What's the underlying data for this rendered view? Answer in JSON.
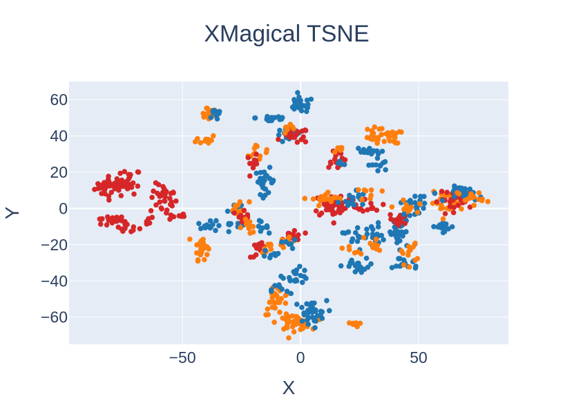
{
  "chart_data": {
    "type": "scatter",
    "title": "XMagical TSNE",
    "xlabel": "X",
    "ylabel": "Y",
    "xlim": [
      -98,
      88
    ],
    "ylim": [
      -75,
      70
    ],
    "x_ticks": [
      -50,
      0,
      50
    ],
    "y_ticks": [
      60,
      40,
      20,
      0,
      -20,
      -40,
      -60
    ],
    "x_tick_labels": [
      "−50",
      "0",
      "50"
    ],
    "y_tick_labels": [
      "60",
      "40",
      "20",
      "0",
      "−20",
      "−40",
      "−60"
    ],
    "grid": true,
    "legend": "none",
    "colors": {
      "plot_background": "#e5ecf6",
      "grid": "#ffffff",
      "text": "#2a3f5f",
      "blue": "#1f77b4",
      "orange": "#ff7f0e",
      "red": "#d62728"
    },
    "clusters": [
      {
        "color": "red",
        "center": [
          -80,
          12
        ],
        "spread": [
          5,
          4
        ],
        "count": 35
      },
      {
        "color": "red",
        "center": [
          -72,
          15
        ],
        "spread": [
          3,
          5
        ],
        "count": 20
      },
      {
        "color": "red",
        "center": [
          -82,
          -7
        ],
        "spread": [
          4,
          2
        ],
        "count": 15
      },
      {
        "color": "red",
        "center": [
          -74,
          -10
        ],
        "spread": [
          4,
          3
        ],
        "count": 15
      },
      {
        "color": "red",
        "center": [
          -58,
          5
        ],
        "spread": [
          4,
          6
        ],
        "count": 30
      },
      {
        "color": "red",
        "center": [
          -52,
          -4
        ],
        "spread": [
          3,
          2
        ],
        "count": 10
      },
      {
        "color": "red",
        "center": [
          -66,
          -7
        ],
        "spread": [
          3,
          2
        ],
        "count": 6
      },
      {
        "color": "orange",
        "center": [
          -39,
          53
        ],
        "spread": [
          3,
          3
        ],
        "count": 18
      },
      {
        "color": "blue",
        "center": [
          -35,
          52
        ],
        "spread": [
          3,
          3
        ],
        "count": 10
      },
      {
        "color": "orange",
        "center": [
          -40,
          38
        ],
        "spread": [
          3,
          2
        ],
        "count": 10
      },
      {
        "color": "orange",
        "center": [
          -42,
          -21
        ],
        "spread": [
          2,
          5
        ],
        "count": 25
      },
      {
        "color": "blue",
        "center": [
          -38,
          -10
        ],
        "spread": [
          4,
          2
        ],
        "count": 15
      },
      {
        "color": "blue",
        "center": [
          -28,
          0
        ],
        "spread": [
          2,
          3
        ],
        "count": 12
      },
      {
        "color": "blue",
        "center": [
          -30,
          -9
        ],
        "spread": [
          3,
          1
        ],
        "count": 8
      },
      {
        "color": "orange",
        "center": [
          -26,
          0
        ],
        "spread": [
          3,
          3
        ],
        "count": 10
      },
      {
        "color": "red",
        "center": [
          -24,
          -3
        ],
        "spread": [
          2,
          3
        ],
        "count": 10
      },
      {
        "color": "orange",
        "center": [
          -18,
          30
        ],
        "spread": [
          3,
          4
        ],
        "count": 12
      },
      {
        "color": "red",
        "center": [
          -20,
          25
        ],
        "spread": [
          2,
          3
        ],
        "count": 10
      },
      {
        "color": "blue",
        "center": [
          -15,
          15
        ],
        "spread": [
          3,
          5
        ],
        "count": 25
      },
      {
        "color": "orange",
        "center": [
          -22,
          -10
        ],
        "spread": [
          3,
          3
        ],
        "count": 12
      },
      {
        "color": "blue",
        "center": [
          -18,
          -10
        ],
        "spread": [
          3,
          2
        ],
        "count": 8
      },
      {
        "color": "red",
        "center": [
          -17,
          -23
        ],
        "spread": [
          3,
          3
        ],
        "count": 15
      },
      {
        "color": "orange",
        "center": [
          -14,
          -22
        ],
        "spread": [
          2,
          3
        ],
        "count": 8
      },
      {
        "color": "blue",
        "center": [
          -12,
          -25
        ],
        "spread": [
          3,
          3
        ],
        "count": 8
      },
      {
        "color": "blue",
        "center": [
          -12,
          50
        ],
        "spread": [
          5,
          2
        ],
        "count": 15
      },
      {
        "color": "blue",
        "center": [
          0,
          57
        ],
        "spread": [
          4,
          3
        ],
        "count": 30
      },
      {
        "color": "blue",
        "center": [
          -5,
          40
        ],
        "spread": [
          4,
          3
        ],
        "count": 20
      },
      {
        "color": "red",
        "center": [
          -2,
          40
        ],
        "spread": [
          4,
          3
        ],
        "count": 20
      },
      {
        "color": "orange",
        "center": [
          -5,
          43
        ],
        "spread": [
          3,
          2
        ],
        "count": 8
      },
      {
        "color": "red",
        "center": [
          -3,
          -15
        ],
        "spread": [
          3,
          3
        ],
        "count": 15
      },
      {
        "color": "orange",
        "center": [
          -5,
          -18
        ],
        "spread": [
          3,
          3
        ],
        "count": 10
      },
      {
        "color": "blue",
        "center": [
          -4,
          -20
        ],
        "spread": [
          2,
          2
        ],
        "count": 6
      },
      {
        "color": "blue",
        "center": [
          -2,
          -37
        ],
        "spread": [
          4,
          3
        ],
        "count": 20
      },
      {
        "color": "orange",
        "center": [
          -10,
          -50
        ],
        "spread": [
          4,
          6
        ],
        "count": 25
      },
      {
        "color": "orange",
        "center": [
          -3,
          -63
        ],
        "spread": [
          5,
          3
        ],
        "count": 40
      },
      {
        "color": "blue",
        "center": [
          4,
          -58
        ],
        "spread": [
          5,
          5
        ],
        "count": 35
      },
      {
        "color": "blue",
        "center": [
          -8,
          -45
        ],
        "spread": [
          3,
          3
        ],
        "count": 8
      },
      {
        "color": "orange",
        "center": [
          23,
          -64
        ],
        "spread": [
          2,
          1
        ],
        "count": 8
      },
      {
        "color": "red",
        "center": [
          15,
          2
        ],
        "spread": [
          7,
          5
        ],
        "count": 60
      },
      {
        "color": "orange",
        "center": [
          12,
          5
        ],
        "spread": [
          5,
          3
        ],
        "count": 20
      },
      {
        "color": "blue",
        "center": [
          22,
          5
        ],
        "spread": [
          4,
          4
        ],
        "count": 15
      },
      {
        "color": "red",
        "center": [
          30,
          2
        ],
        "spread": [
          3,
          3
        ],
        "count": 10
      },
      {
        "color": "orange",
        "center": [
          30,
          8
        ],
        "spread": [
          3,
          3
        ],
        "count": 8
      },
      {
        "color": "red",
        "center": [
          15,
          28
        ],
        "spread": [
          3,
          4
        ],
        "count": 18
      },
      {
        "color": "orange",
        "center": [
          16,
          32
        ],
        "spread": [
          2,
          2
        ],
        "count": 6
      },
      {
        "color": "blue",
        "center": [
          17,
          25
        ],
        "spread": [
          2,
          2
        ],
        "count": 5
      },
      {
        "color": "orange",
        "center": [
          30,
          40
        ],
        "spread": [
          3,
          3
        ],
        "count": 18
      },
      {
        "color": "blue",
        "center": [
          28,
          31
        ],
        "spread": [
          4,
          2
        ],
        "count": 15
      },
      {
        "color": "orange",
        "center": [
          38,
          40
        ],
        "spread": [
          3,
          3
        ],
        "count": 18
      },
      {
        "color": "blue",
        "center": [
          33,
          24
        ],
        "spread": [
          3,
          3
        ],
        "count": 10
      },
      {
        "color": "blue",
        "center": [
          27,
          -15
        ],
        "spread": [
          6,
          5
        ],
        "count": 30
      },
      {
        "color": "orange",
        "center": [
          31,
          -20
        ],
        "spread": [
          3,
          4
        ],
        "count": 12
      },
      {
        "color": "blue",
        "center": [
          25,
          -32
        ],
        "spread": [
          5,
          3
        ],
        "count": 18
      },
      {
        "color": "orange",
        "center": [
          22,
          -25
        ],
        "spread": [
          3,
          3
        ],
        "count": 6
      },
      {
        "color": "blue",
        "center": [
          42,
          -15
        ],
        "spread": [
          4,
          7
        ],
        "count": 30
      },
      {
        "color": "blue",
        "center": [
          45,
          -30
        ],
        "spread": [
          4,
          3
        ],
        "count": 15
      },
      {
        "color": "orange",
        "center": [
          45,
          -25
        ],
        "spread": [
          3,
          4
        ],
        "count": 12
      },
      {
        "color": "red",
        "center": [
          42,
          -6
        ],
        "spread": [
          3,
          3
        ],
        "count": 12
      },
      {
        "color": "blue",
        "center": [
          48,
          2
        ],
        "spread": [
          4,
          4
        ],
        "count": 25
      },
      {
        "color": "orange",
        "center": [
          45,
          0
        ],
        "spread": [
          3,
          3
        ],
        "count": 12
      },
      {
        "color": "blue",
        "center": [
          60,
          -10
        ],
        "spread": [
          4,
          2
        ],
        "count": 18
      },
      {
        "color": "orange",
        "center": [
          62,
          3
        ],
        "spread": [
          5,
          4
        ],
        "count": 25
      },
      {
        "color": "red",
        "center": [
          67,
          5
        ],
        "spread": [
          6,
          4
        ],
        "count": 30
      },
      {
        "color": "blue",
        "center": [
          70,
          8
        ],
        "spread": [
          5,
          3
        ],
        "count": 25
      },
      {
        "color": "orange",
        "center": [
          72,
          6
        ],
        "spread": [
          4,
          3
        ],
        "count": 15
      }
    ]
  }
}
